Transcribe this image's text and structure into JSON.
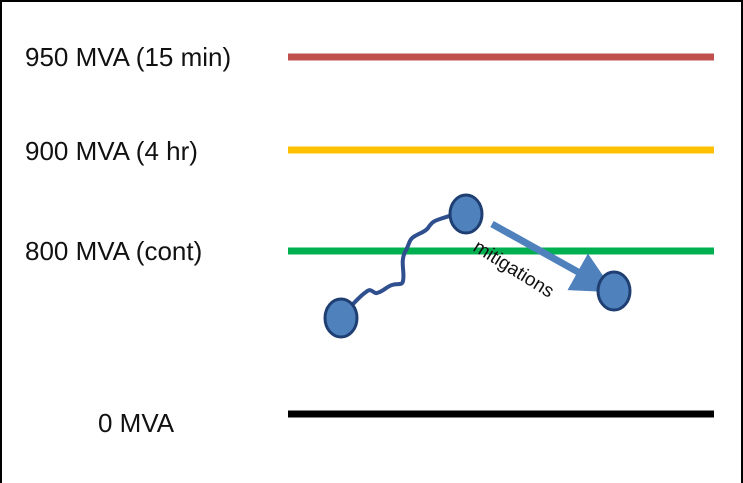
{
  "levels": [
    {
      "label": "950 MVA (15 min)",
      "color": "#c0504d"
    },
    {
      "label": "900 MVA (4 hr)",
      "color": "#ffc000"
    },
    {
      "label": "800 MVA (cont)",
      "color": "#00b050"
    },
    {
      "label": "0 MVA",
      "color": "#000000"
    }
  ],
  "path_color": "#2f4f8f",
  "node_color": "#4f81bd",
  "node_stroke": "#1f3f73",
  "arrow_color": "#4f81bd",
  "annotation": "mitigations"
}
